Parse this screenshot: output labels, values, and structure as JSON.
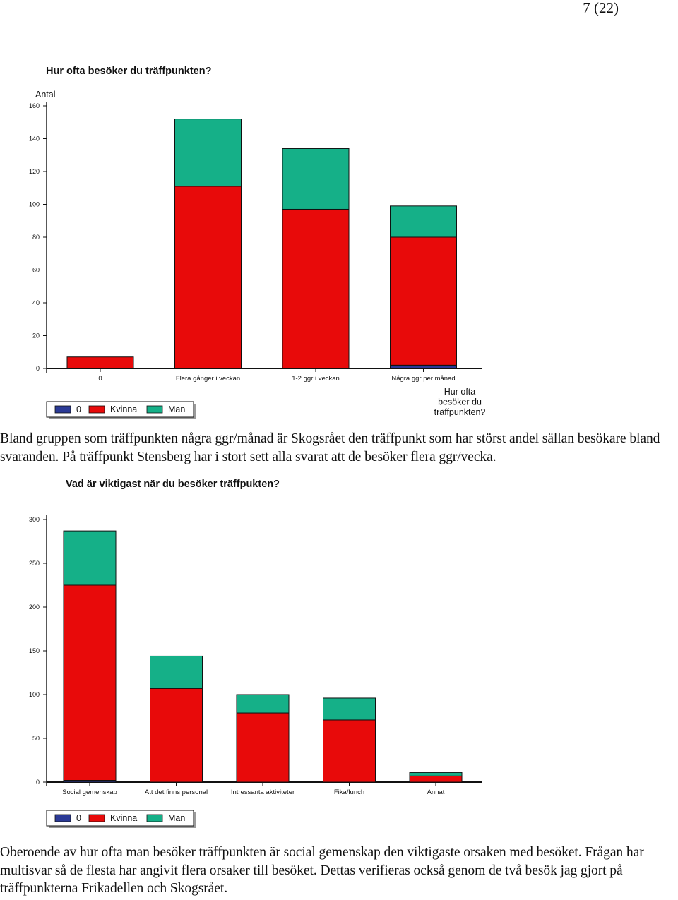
{
  "page": {
    "number": "7 (22)"
  },
  "paragraphs": {
    "p1": "Bland gruppen som träffpunkten några ggr/månad är Skogsrået den träffpunkt som har störst andel sällan besökare bland svaranden. På träffpunkt Stensberg har i stort sett alla svarat att de besöker flera ggr/vecka.",
    "p2": "Oberoende av hur ofta man besöker träffpunkten är social gemenskap den viktigaste orsaken med besöket. Frågan har multisvar så de flesta har angivit flera orsaker till besöket. Dettas verifieras också genom de två besök jag gjort på träffpunkterna Frikadellen och Skogsrået."
  },
  "chart_data": [
    {
      "type": "bar",
      "stacked": true,
      "title": "Hur ofta besöker du träffpunkten?",
      "ylabel": "Antal",
      "xlabel": [
        "Hur ofta",
        "besöker du",
        "träffpunkten?"
      ],
      "ylim": [
        0,
        160
      ],
      "yticks": [
        0,
        20,
        40,
        60,
        80,
        100,
        120,
        140,
        160
      ],
      "categories": [
        "0",
        "Flera gånger i veckan",
        "1-2 ggr i veckan",
        "Några ggr per månad"
      ],
      "series": [
        {
          "name": "0",
          "color": "#2b3a96",
          "values": [
            0,
            0,
            0,
            2
          ]
        },
        {
          "name": "Kvinna",
          "color": "#e80a0a",
          "values": [
            7,
            111,
            97,
            78
          ]
        },
        {
          "name": "Man",
          "color": "#15b088",
          "values": [
            0,
            41,
            37,
            19
          ]
        }
      ],
      "legend": "bottom-left",
      "grid": false
    },
    {
      "type": "bar",
      "stacked": true,
      "title": "Vad är viktigast när du besöker träffpukten?",
      "ylabel": "",
      "xlabel": "",
      "ylim": [
        0,
        300
      ],
      "yticks": [
        0,
        50,
        100,
        150,
        200,
        250,
        300
      ],
      "categories": [
        "Social gemenskap",
        "Att det finns personal",
        "Intressanta aktiviteter",
        "Fika/lunch",
        "Annat"
      ],
      "series": [
        {
          "name": "0",
          "color": "#2b3a96",
          "values": [
            2,
            0,
            0,
            0,
            0
          ]
        },
        {
          "name": "Kvinna",
          "color": "#e80a0a",
          "values": [
            223,
            107,
            79,
            71,
            7
          ]
        },
        {
          "name": "Man",
          "color": "#15b088",
          "values": [
            62,
            37,
            21,
            25,
            4
          ]
        }
      ],
      "legend": "bottom-left",
      "grid": false
    }
  ]
}
